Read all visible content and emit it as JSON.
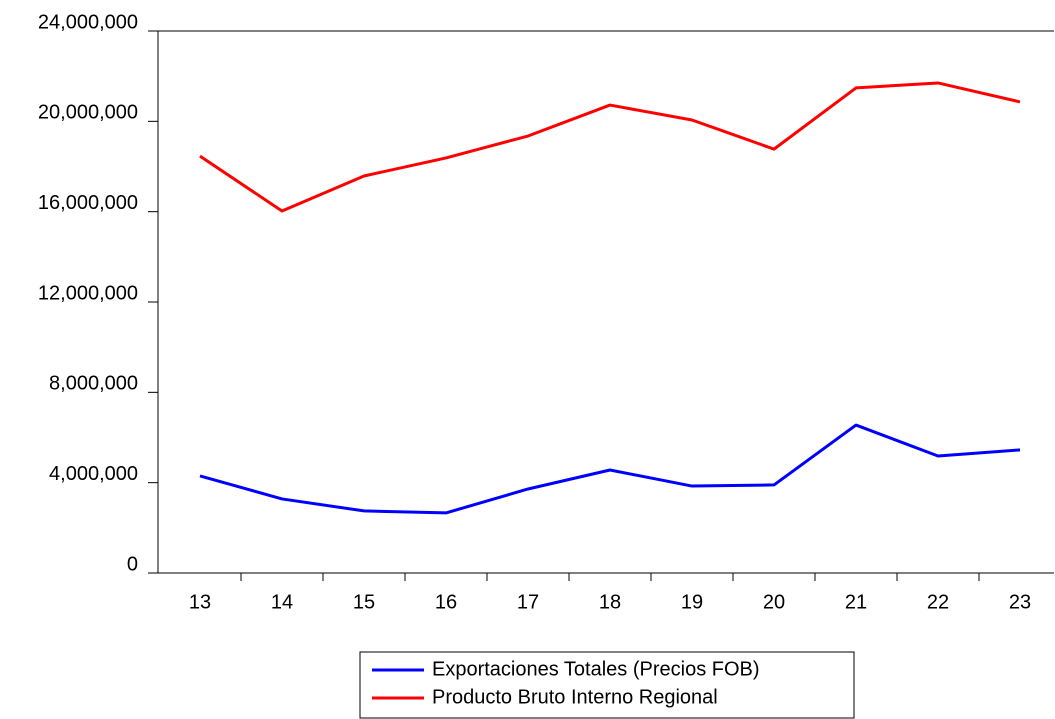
{
  "chart_data": {
    "type": "line",
    "categories": [
      "13",
      "14",
      "15",
      "16",
      "17",
      "18",
      "19",
      "20",
      "21",
      "22",
      "23"
    ],
    "series": [
      {
        "name": "Exportaciones Totales (Precios FOB)",
        "color": "#0000ff",
        "values": [
          4300000,
          3280000,
          2750000,
          2660000,
          3720000,
          4560000,
          3850000,
          3900000,
          6550000,
          5180000,
          5450000
        ]
      },
      {
        "name": "Producto Bruto Interno Regional",
        "color": "#ff0000",
        "values": [
          18460000,
          16030000,
          17580000,
          18380000,
          19350000,
          20720000,
          20060000,
          18770000,
          21480000,
          21700000,
          20860000
        ]
      }
    ],
    "ylim": [
      0,
      24000000
    ],
    "yticks": [
      0,
      {
        "value": 4000000,
        "label": "4,000,000"
      },
      {
        "value": 8000000,
        "label": "8,000,000"
      },
      {
        "value": 12000000,
        "label": "12,000,000"
      },
      {
        "value": 16000000,
        "label": "16,000,000"
      },
      {
        "value": 20000000,
        "label": "20,000,000"
      },
      {
        "value": 24000000,
        "label": "24,000,000"
      }
    ],
    "legend": "bottom"
  }
}
